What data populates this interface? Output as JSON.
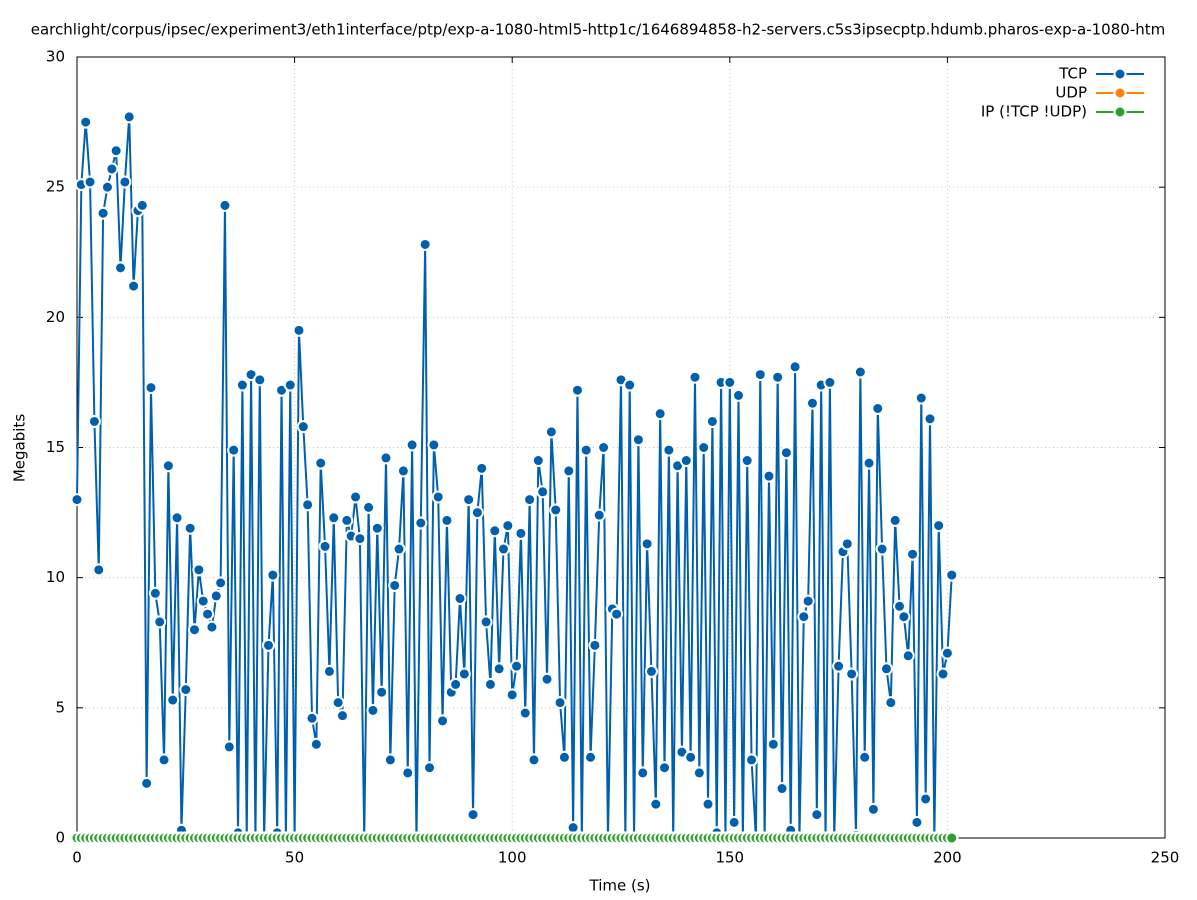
{
  "chart_data": {
    "type": "line",
    "title": "earchlight/corpus/ipsec/experiment3/eth1interface/ptp/exp-a-1080-html5-http1c/1646894858-h2-servers.c5s3ipsecptp.hdumb.pharos-exp-a-1080-htm",
    "x_label": "Time (s)",
    "y_label": "Megabits",
    "xlim": [
      0,
      250
    ],
    "xticks": [
      0,
      50,
      100,
      150,
      200,
      250
    ],
    "ylim": [
      0,
      30
    ],
    "yticks": [
      0,
      5,
      10,
      15,
      20,
      25,
      30
    ],
    "grid": true,
    "legend": "top-right",
    "x": [
      0,
      1,
      2,
      3,
      4,
      5,
      6,
      7,
      8,
      9,
      10,
      11,
      12,
      13,
      14,
      15,
      16,
      17,
      18,
      19,
      20,
      21,
      22,
      23,
      24,
      25,
      26,
      27,
      28,
      29,
      30,
      31,
      32,
      33,
      34,
      35,
      36,
      37,
      38,
      39,
      40,
      41,
      42,
      43,
      44,
      45,
      46,
      47,
      48,
      49,
      50,
      51,
      52,
      53,
      54,
      55,
      56,
      57,
      58,
      59,
      60,
      61,
      62,
      63,
      64,
      65,
      66,
      67,
      68,
      69,
      70,
      71,
      72,
      73,
      74,
      75,
      76,
      77,
      78,
      79,
      80,
      81,
      82,
      83,
      84,
      85,
      86,
      87,
      88,
      89,
      90,
      91,
      92,
      93,
      94,
      95,
      96,
      97,
      98,
      99,
      100,
      101,
      102,
      103,
      104,
      105,
      106,
      107,
      108,
      109,
      110,
      111,
      112,
      113,
      114,
      115,
      116,
      117,
      118,
      119,
      120,
      121,
      122,
      123,
      124,
      125,
      126,
      127,
      128,
      129,
      130,
      131,
      132,
      133,
      134,
      135,
      136,
      137,
      138,
      139,
      140,
      141,
      142,
      143,
      144,
      145,
      146,
      147,
      148,
      149,
      150,
      151,
      152,
      153,
      154,
      155,
      156,
      157,
      158,
      159,
      160,
      161,
      162,
      163,
      164,
      165,
      166,
      167,
      168,
      169,
      170,
      171,
      172,
      173,
      174,
      175,
      176,
      177,
      178,
      179,
      180,
      181,
      182,
      183,
      184,
      185,
      186,
      187,
      188,
      189,
      190,
      191,
      192,
      193,
      194,
      195,
      196,
      197,
      198,
      199,
      200,
      201
    ],
    "series": [
      {
        "name": "TCP",
        "color": "#0060ad",
        "values": [
          13.0,
          25.1,
          27.5,
          25.2,
          16.0,
          10.3,
          24.0,
          25.0,
          25.7,
          26.4,
          21.9,
          25.2,
          27.7,
          21.2,
          24.1,
          24.3,
          2.1,
          17.3,
          9.4,
          8.3,
          3.0,
          14.3,
          5.3,
          12.3,
          0.3,
          5.7,
          11.9,
          8.0,
          10.3,
          9.1,
          8.6,
          8.1,
          9.3,
          9.8,
          24.3,
          3.5,
          14.9,
          0.2,
          17.4,
          0,
          17.8,
          0,
          17.6,
          0,
          7.4,
          10.1,
          0.2,
          17.2,
          0,
          17.4,
          0,
          19.5,
          15.8,
          12.8,
          4.6,
          3.6,
          14.4,
          11.2,
          6.4,
          12.3,
          5.2,
          4.7,
          12.2,
          11.6,
          13.1,
          11.5,
          0,
          12.7,
          4.9,
          11.9,
          5.6,
          14.6,
          3.0,
          9.7,
          11.1,
          14.1,
          2.5,
          15.1,
          0,
          12.1,
          22.8,
          2.7,
          15.1,
          13.1,
          4.5,
          12.2,
          5.6,
          5.9,
          9.2,
          6.3,
          13.0,
          0.9,
          12.5,
          14.2,
          8.3,
          5.9,
          11.8,
          6.5,
          11.1,
          12.0,
          5.5,
          6.6,
          11.7,
          4.8,
          13.0,
          3.0,
          14.5,
          13.3,
          6.1,
          15.6,
          12.6,
          5.2,
          3.1,
          14.1,
          0.4,
          17.2,
          0,
          14.9,
          3.1,
          7.4,
          12.4,
          15.0,
          0,
          8.8,
          8.6,
          17.6,
          0,
          17.4,
          0,
          15.3,
          2.5,
          11.3,
          6.4,
          1.3,
          16.3,
          2.7,
          14.9,
          0,
          14.3,
          3.3,
          14.5,
          3.1,
          17.7,
          2.5,
          15.0,
          1.3,
          16.0,
          0.2,
          17.5,
          0,
          17.5,
          0.6,
          17.0,
          0,
          14.5,
          3.0,
          0,
          17.8,
          0,
          13.9,
          3.6,
          17.7,
          1.9,
          14.8,
          0.3,
          18.1,
          0,
          8.5,
          9.1,
          16.7,
          0.9,
          17.4,
          0,
          17.5,
          0,
          6.6,
          11.0,
          11.3,
          6.3,
          0.1,
          17.9,
          3.1,
          14.4,
          1.1,
          16.5,
          11.1,
          6.5,
          5.2,
          12.2,
          8.9,
          8.5,
          7.0,
          10.9,
          0.6,
          16.9,
          1.5,
          16.1,
          0,
          12.0,
          6.3,
          7.1,
          10.1
        ]
      },
      {
        "name": "UDP",
        "color": "#ff7f0e",
        "values": [
          0,
          0,
          0,
          0,
          0,
          0,
          0,
          0,
          0,
          0,
          0,
          0,
          0,
          0,
          0,
          0,
          0,
          0,
          0,
          0,
          0,
          0,
          0,
          0,
          0,
          0,
          0,
          0,
          0,
          0,
          0,
          0,
          0,
          0,
          0,
          0,
          0,
          0,
          0,
          0,
          0,
          0,
          0,
          0,
          0,
          0,
          0,
          0,
          0,
          0,
          0,
          0,
          0,
          0,
          0,
          0,
          0,
          0,
          0,
          0,
          0,
          0,
          0,
          0,
          0,
          0,
          0,
          0,
          0,
          0,
          0,
          0,
          0,
          0,
          0,
          0,
          0,
          0,
          0,
          0,
          0,
          0,
          0,
          0,
          0,
          0,
          0,
          0,
          0,
          0,
          0,
          0,
          0,
          0,
          0,
          0,
          0,
          0,
          0,
          0,
          0,
          0,
          0,
          0,
          0,
          0,
          0,
          0,
          0,
          0,
          0,
          0,
          0,
          0,
          0,
          0,
          0,
          0,
          0,
          0,
          0,
          0,
          0,
          0,
          0,
          0,
          0,
          0,
          0,
          0,
          0,
          0,
          0,
          0,
          0,
          0,
          0,
          0,
          0,
          0,
          0,
          0,
          0,
          0,
          0,
          0,
          0,
          0,
          0,
          0,
          0,
          0,
          0,
          0,
          0,
          0,
          0,
          0,
          0,
          0,
          0,
          0,
          0,
          0,
          0,
          0,
          0,
          0,
          0,
          0,
          0,
          0,
          0,
          0,
          0,
          0,
          0,
          0,
          0,
          0,
          0,
          0,
          0,
          0,
          0,
          0,
          0,
          0,
          0,
          0,
          0,
          0,
          0,
          0,
          0,
          0,
          0,
          0,
          0,
          0,
          0,
          0
        ]
      },
      {
        "name": "IP (!TCP  !UDP)",
        "color": "#2ca02c",
        "values": [
          0,
          0,
          0,
          0,
          0,
          0,
          0,
          0,
          0,
          0,
          0,
          0,
          0,
          0,
          0,
          0,
          0,
          0,
          0,
          0,
          0,
          0,
          0,
          0,
          0,
          0,
          0,
          0,
          0,
          0,
          0,
          0,
          0,
          0,
          0,
          0,
          0,
          0,
          0,
          0,
          0,
          0,
          0,
          0,
          0,
          0,
          0,
          0,
          0,
          0,
          0,
          0,
          0,
          0,
          0,
          0,
          0,
          0,
          0,
          0,
          0,
          0,
          0,
          0,
          0,
          0,
          0,
          0,
          0,
          0,
          0,
          0,
          0,
          0,
          0,
          0,
          0,
          0,
          0,
          0,
          0,
          0,
          0,
          0,
          0,
          0,
          0,
          0,
          0,
          0,
          0,
          0,
          0,
          0,
          0,
          0,
          0,
          0,
          0,
          0,
          0,
          0,
          0,
          0,
          0,
          0,
          0,
          0,
          0,
          0,
          0,
          0,
          0,
          0,
          0,
          0,
          0,
          0,
          0,
          0,
          0,
          0,
          0,
          0,
          0,
          0,
          0,
          0,
          0,
          0,
          0,
          0,
          0,
          0,
          0,
          0,
          0,
          0,
          0,
          0,
          0,
          0,
          0,
          0,
          0,
          0,
          0,
          0,
          0,
          0,
          0,
          0,
          0,
          0,
          0,
          0,
          0,
          0,
          0,
          0,
          0,
          0,
          0,
          0,
          0,
          0,
          0,
          0,
          0,
          0,
          0,
          0,
          0,
          0,
          0,
          0,
          0,
          0,
          0,
          0,
          0,
          0,
          0,
          0,
          0,
          0,
          0,
          0,
          0,
          0,
          0,
          0,
          0,
          0,
          0,
          0,
          0,
          0,
          0,
          0,
          0,
          0
        ]
      }
    ]
  }
}
